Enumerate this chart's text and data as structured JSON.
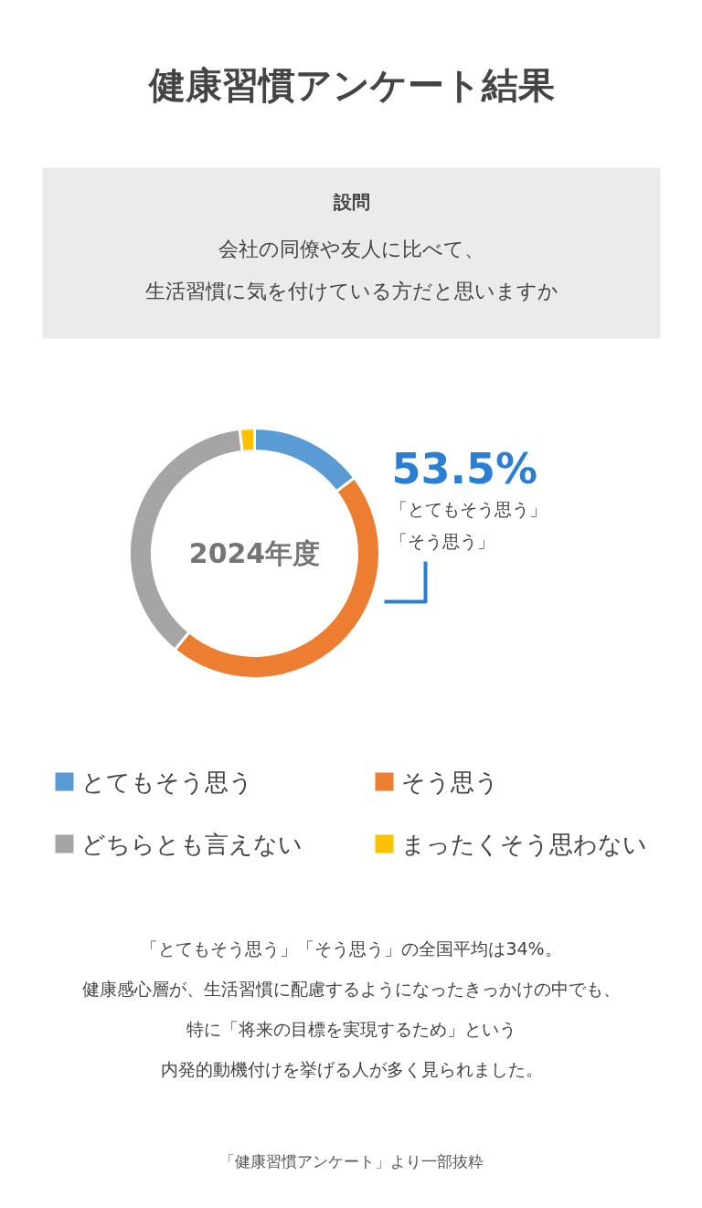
{
  "chart_data": {
    "type": "donut",
    "title": "健康習慣アンケート結果",
    "subtitle": "設問",
    "categories": [
      "とてもそう思う",
      "そう思う",
      "どちらとも言えない",
      "まったくそう思わない"
    ],
    "values": [
      14.7,
      46.3,
      37.1,
      1.9
    ],
    "colors": [
      "#5b9bd5",
      "#ed7d31",
      "#a5a5a5",
      "#ffc000"
    ],
    "legend": "bottom",
    "annotations": [
      "会社の同僚や友人に比べて、",
      "生活習慣に気を付けている方だと思いますか",
      "2024年度",
      "53.5%",
      "「とてもそう思う」",
      "「そう思う」",
      "「とてもそう思う」「そう思う」の全国平均は34%。",
      "健康感心層が、生活習慣に配慮するようになったきっかけの中でも、",
      "特に「将来の目標を実現するため」という",
      "内発的動機付けを挙げる人が多く見られました。",
      "「健康習慣アンケート」より一部抜粋"
    ]
  }
}
